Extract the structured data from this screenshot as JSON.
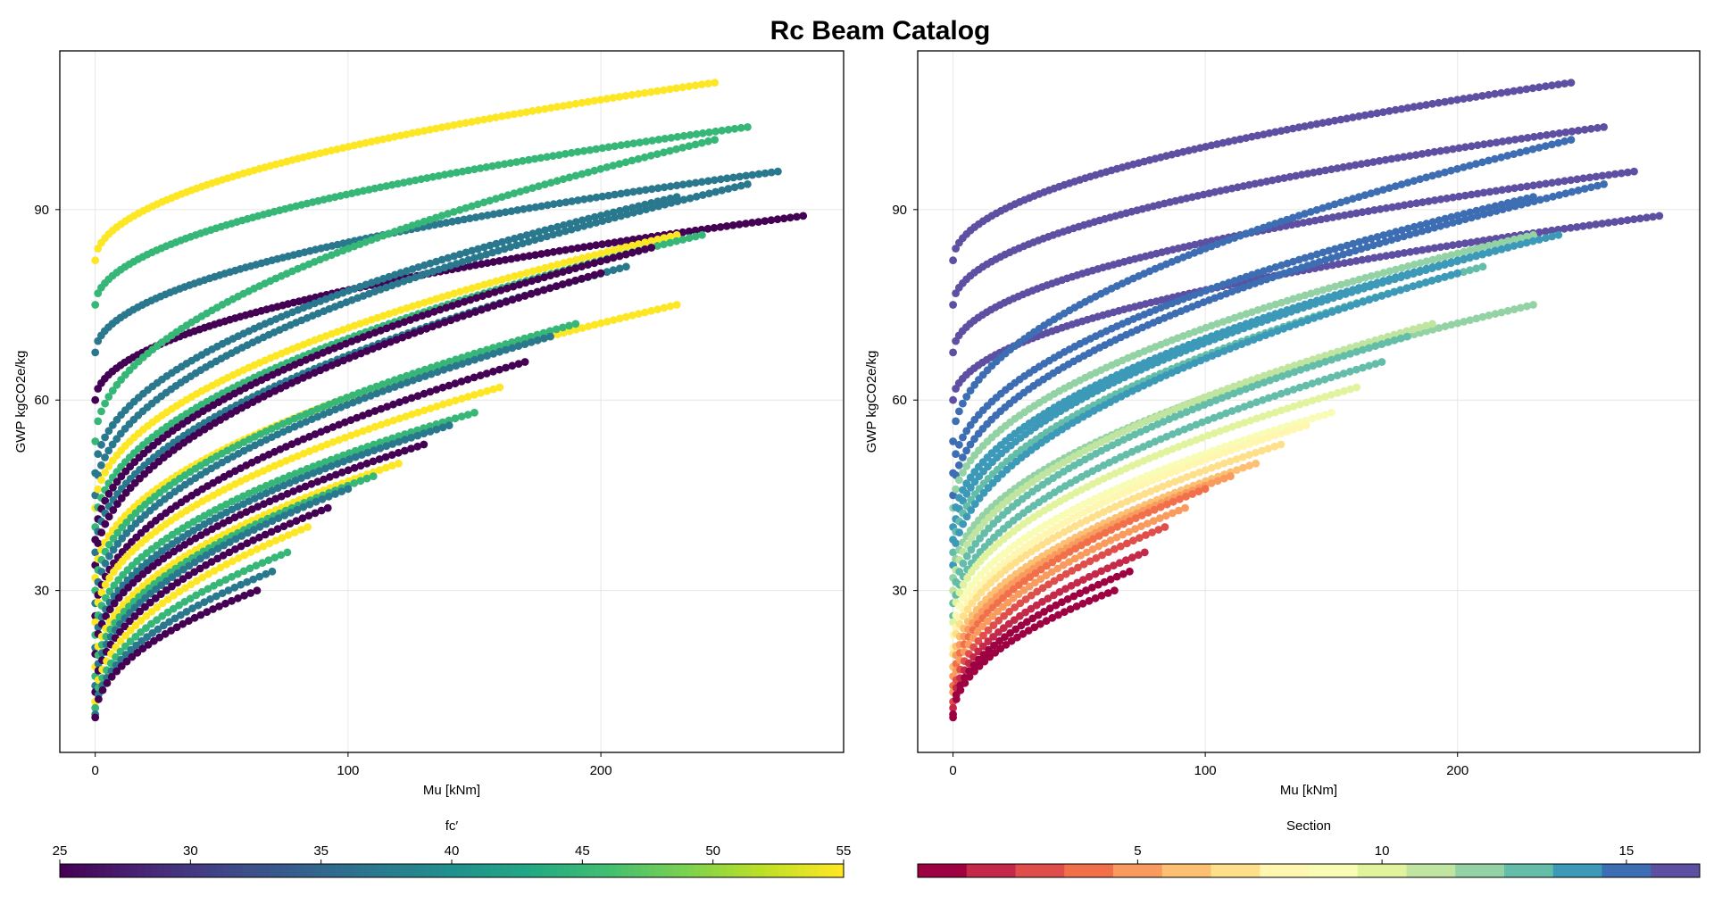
{
  "figure": {
    "title": "Rc Beam Catalog"
  },
  "chart_data": [
    {
      "type": "scatter",
      "xlabel": "Mu [kNm]",
      "ylabel": "GWP kgCO2e/kg",
      "xlim": [
        -14,
        296
      ],
      "ylim": [
        4.5,
        115
      ],
      "xticks": [
        0,
        100,
        200
      ],
      "yticks": [
        30,
        60,
        90
      ],
      "grid": true,
      "color_by": "fc′",
      "colormap": "viridis",
      "colorbar": {
        "label": "fc′",
        "range": [
          25,
          55
        ],
        "ticks": [
          25,
          30,
          35,
          40,
          45,
          50,
          55
        ],
        "placement": "bottom"
      },
      "series_lines": [
        {
          "x0": 0,
          "y0": 82,
          "x1": 245,
          "y1": 110,
          "c": 55
        },
        {
          "x0": 0,
          "y0": 75,
          "x1": 258,
          "y1": 103,
          "c": 45
        },
        {
          "x0": 0,
          "y0": 67.5,
          "x1": 270,
          "y1": 96,
          "c": 37
        },
        {
          "x0": 0,
          "y0": 60,
          "x1": 280,
          "y1": 89,
          "c": 25
        },
        {
          "x0": 0,
          "y0": 53.5,
          "x1": 245,
          "y1": 101,
          "c": 45
        },
        {
          "x0": 0,
          "y0": 48.5,
          "x1": 230,
          "y1": 92,
          "c": 37
        },
        {
          "x0": 0,
          "y0": 45,
          "x1": 258,
          "y1": 94,
          "c": 37
        },
        {
          "x0": 0,
          "y0": 43,
          "x1": 230,
          "y1": 86,
          "c": 55
        },
        {
          "x0": 0,
          "y0": 40,
          "x1": 240,
          "y1": 86,
          "c": 45
        },
        {
          "x0": 0,
          "y0": 38,
          "x1": 220,
          "y1": 84,
          "c": 25
        },
        {
          "x0": 0,
          "y0": 36,
          "x1": 210,
          "y1": 81,
          "c": 37
        },
        {
          "x0": 0,
          "y0": 34,
          "x1": 200,
          "y1": 80,
          "c": 25
        },
        {
          "x0": 0,
          "y0": 32,
          "x1": 230,
          "y1": 75,
          "c": 55
        },
        {
          "x0": 0,
          "y0": 30,
          "x1": 190,
          "y1": 72,
          "c": 45
        },
        {
          "x0": 0,
          "y0": 28,
          "x1": 180,
          "y1": 70,
          "c": 37
        },
        {
          "x0": 0,
          "y0": 26,
          "x1": 170,
          "y1": 66,
          "c": 25
        },
        {
          "x0": 0,
          "y0": 25,
          "x1": 160,
          "y1": 62,
          "c": 55
        },
        {
          "x0": 0,
          "y0": 23,
          "x1": 150,
          "y1": 58,
          "c": 45
        },
        {
          "x0": 0,
          "y0": 21,
          "x1": 140,
          "y1": 56,
          "c": 37
        },
        {
          "x0": 0,
          "y0": 20,
          "x1": 130,
          "y1": 53,
          "c": 25
        },
        {
          "x0": 0,
          "y0": 18,
          "x1": 120,
          "y1": 50,
          "c": 55
        },
        {
          "x0": 0,
          "y0": 16.5,
          "x1": 110,
          "y1": 48,
          "c": 45
        },
        {
          "x0": 0,
          "y0": 15,
          "x1": 100,
          "y1": 46,
          "c": 37
        },
        {
          "x0": 0,
          "y0": 14,
          "x1": 92,
          "y1": 43,
          "c": 25
        },
        {
          "x0": 0,
          "y0": 12.5,
          "x1": 84,
          "y1": 40,
          "c": 55
        },
        {
          "x0": 0,
          "y0": 11.5,
          "x1": 76,
          "y1": 36,
          "c": 45
        },
        {
          "x0": 0,
          "y0": 10.5,
          "x1": 70,
          "y1": 33,
          "c": 37
        },
        {
          "x0": 0,
          "y0": 10,
          "x1": 64,
          "y1": 30,
          "c": 25
        }
      ]
    },
    {
      "type": "scatter",
      "xlabel": "Mu [kNm]",
      "ylabel": "GWP kgCO2e/kg",
      "xlim": [
        -14,
        296
      ],
      "ylim": [
        4.5,
        115
      ],
      "xticks": [
        0,
        100,
        200
      ],
      "yticks": [
        30,
        60,
        90
      ],
      "grid": true,
      "color_by": "Section",
      "colormap": "Spectral",
      "colorbar": {
        "label": "Section",
        "range": [
          0.5,
          16.5
        ],
        "ticks": [
          5,
          10,
          15
        ],
        "categorical": true,
        "placement": "bottom"
      },
      "series_lines": [
        {
          "x0": 0,
          "y0": 82,
          "x1": 245,
          "y1": 110,
          "c": 16
        },
        {
          "x0": 0,
          "y0": 75,
          "x1": 258,
          "y1": 103,
          "c": 16
        },
        {
          "x0": 0,
          "y0": 67.5,
          "x1": 270,
          "y1": 96,
          "c": 16
        },
        {
          "x0": 0,
          "y0": 60,
          "x1": 280,
          "y1": 89,
          "c": 16
        },
        {
          "x0": 0,
          "y0": 53.5,
          "x1": 245,
          "y1": 101,
          "c": 15
        },
        {
          "x0": 0,
          "y0": 48.5,
          "x1": 230,
          "y1": 92,
          "c": 15
        },
        {
          "x0": 0,
          "y0": 45,
          "x1": 258,
          "y1": 94,
          "c": 15
        },
        {
          "x0": 0,
          "y0": 43,
          "x1": 230,
          "y1": 86,
          "c": 12
        },
        {
          "x0": 0,
          "y0": 40,
          "x1": 240,
          "y1": 86,
          "c": 14
        },
        {
          "x0": 0,
          "y0": 38,
          "x1": 220,
          "y1": 84,
          "c": 14
        },
        {
          "x0": 0,
          "y0": 36,
          "x1": 210,
          "y1": 81,
          "c": 13
        },
        {
          "x0": 0,
          "y0": 34,
          "x1": 200,
          "y1": 80,
          "c": 14
        },
        {
          "x0": 0,
          "y0": 32,
          "x1": 230,
          "y1": 75,
          "c": 12
        },
        {
          "x0": 0,
          "y0": 30,
          "x1": 190,
          "y1": 72,
          "c": 11
        },
        {
          "x0": 0,
          "y0": 28,
          "x1": 180,
          "y1": 70,
          "c": 13
        },
        {
          "x0": 0,
          "y0": 26,
          "x1": 170,
          "y1": 66,
          "c": 13
        },
        {
          "x0": 0,
          "y0": 25,
          "x1": 160,
          "y1": 62,
          "c": 10
        },
        {
          "x0": 0,
          "y0": 23,
          "x1": 150,
          "y1": 58,
          "c": 9
        },
        {
          "x0": 0,
          "y0": 21,
          "x1": 140,
          "y1": 56,
          "c": 8
        },
        {
          "x0": 0,
          "y0": 20,
          "x1": 130,
          "y1": 53,
          "c": 7
        },
        {
          "x0": 0,
          "y0": 18,
          "x1": 120,
          "y1": 50,
          "c": 6
        },
        {
          "x0": 0,
          "y0": 16.5,
          "x1": 110,
          "y1": 48,
          "c": 5
        },
        {
          "x0": 0,
          "y0": 15,
          "x1": 100,
          "y1": 46,
          "c": 4
        },
        {
          "x0": 0,
          "y0": 14,
          "x1": 92,
          "y1": 43,
          "c": 5
        },
        {
          "x0": 0,
          "y0": 12.5,
          "x1": 84,
          "y1": 40,
          "c": 3
        },
        {
          "x0": 0,
          "y0": 11.5,
          "x1": 76,
          "y1": 36,
          "c": 2
        },
        {
          "x0": 0,
          "y0": 10.5,
          "x1": 70,
          "y1": 33,
          "c": 1
        },
        {
          "x0": 0,
          "y0": 10,
          "x1": 64,
          "y1": 30,
          "c": 1
        }
      ]
    }
  ]
}
